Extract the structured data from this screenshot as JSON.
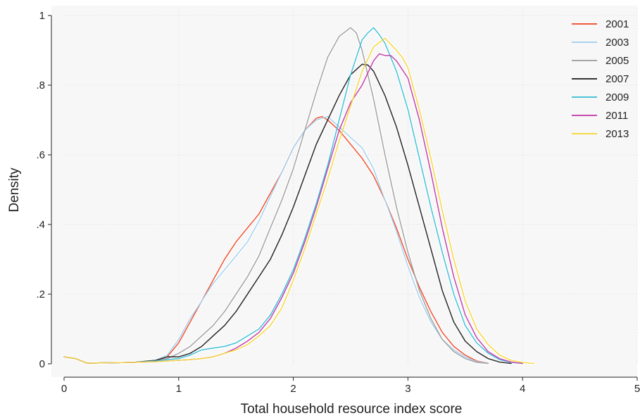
{
  "chart_data": {
    "type": "line",
    "title": "",
    "xlabel": "Total household resource index score",
    "ylabel": "Density",
    "xlim": [
      0,
      5
    ],
    "ylim": [
      0,
      1
    ],
    "x_ticks": [
      0,
      1,
      2,
      3,
      4,
      5
    ],
    "x_tick_labels": [
      "0",
      "1",
      "2",
      "3",
      "4",
      "5"
    ],
    "y_ticks": [
      0,
      0.2,
      0.4,
      0.6,
      0.8,
      1
    ],
    "y_tick_labels": [
      "0",
      ".2",
      ".4",
      ".6",
      ".8",
      "1"
    ],
    "grid": true,
    "legend_position": "top-right",
    "series": [
      {
        "name": "2001",
        "color": "#f05a3c",
        "points": [
          [
            0,
            0.02
          ],
          [
            0.1,
            0.015
          ],
          [
            0.2,
            0.002
          ],
          [
            0.4,
            0.003
          ],
          [
            0.6,
            0.004
          ],
          [
            0.8,
            0.008
          ],
          [
            0.9,
            0.02
          ],
          [
            1.0,
            0.06
          ],
          [
            1.1,
            0.12
          ],
          [
            1.2,
            0.18
          ],
          [
            1.3,
            0.24
          ],
          [
            1.4,
            0.3
          ],
          [
            1.5,
            0.35
          ],
          [
            1.6,
            0.39
          ],
          [
            1.7,
            0.43
          ],
          [
            1.8,
            0.49
          ],
          [
            1.9,
            0.55
          ],
          [
            2.0,
            0.62
          ],
          [
            2.1,
            0.67
          ],
          [
            2.2,
            0.705
          ],
          [
            2.25,
            0.71
          ],
          [
            2.3,
            0.7
          ],
          [
            2.4,
            0.67
          ],
          [
            2.5,
            0.63
          ],
          [
            2.6,
            0.59
          ],
          [
            2.7,
            0.54
          ],
          [
            2.8,
            0.47
          ],
          [
            2.9,
            0.39
          ],
          [
            3.0,
            0.3
          ],
          [
            3.1,
            0.22
          ],
          [
            3.2,
            0.15
          ],
          [
            3.3,
            0.09
          ],
          [
            3.4,
            0.05
          ],
          [
            3.5,
            0.025
          ],
          [
            3.6,
            0.008
          ],
          [
            3.7,
            0.002
          ]
        ]
      },
      {
        "name": "2003",
        "color": "#a9d2ee",
        "points": [
          [
            0,
            0.02
          ],
          [
            0.1,
            0.015
          ],
          [
            0.2,
            0.002
          ],
          [
            0.4,
            0.003
          ],
          [
            0.6,
            0.004
          ],
          [
            0.8,
            0.01
          ],
          [
            0.9,
            0.025
          ],
          [
            1.0,
            0.07
          ],
          [
            1.1,
            0.13
          ],
          [
            1.2,
            0.18
          ],
          [
            1.3,
            0.23
          ],
          [
            1.4,
            0.27
          ],
          [
            1.5,
            0.31
          ],
          [
            1.6,
            0.35
          ],
          [
            1.7,
            0.41
          ],
          [
            1.8,
            0.48
          ],
          [
            1.9,
            0.55
          ],
          [
            2.0,
            0.62
          ],
          [
            2.1,
            0.67
          ],
          [
            2.2,
            0.7
          ],
          [
            2.3,
            0.71
          ],
          [
            2.4,
            0.68
          ],
          [
            2.5,
            0.65
          ],
          [
            2.6,
            0.62
          ],
          [
            2.7,
            0.56
          ],
          [
            2.8,
            0.47
          ],
          [
            2.9,
            0.38
          ],
          [
            3.0,
            0.28
          ],
          [
            3.1,
            0.19
          ],
          [
            3.2,
            0.12
          ],
          [
            3.3,
            0.07
          ],
          [
            3.4,
            0.04
          ],
          [
            3.5,
            0.02
          ],
          [
            3.6,
            0.006
          ],
          [
            3.7,
            0.002
          ]
        ]
      },
      {
        "name": "2005",
        "color": "#a6a6a6",
        "points": [
          [
            0,
            0.02
          ],
          [
            0.1,
            0.015
          ],
          [
            0.2,
            0.002
          ],
          [
            0.4,
            0.003
          ],
          [
            0.6,
            0.004
          ],
          [
            0.8,
            0.008
          ],
          [
            0.9,
            0.015
          ],
          [
            1.0,
            0.03
          ],
          [
            1.1,
            0.05
          ],
          [
            1.2,
            0.08
          ],
          [
            1.3,
            0.11
          ],
          [
            1.4,
            0.15
          ],
          [
            1.5,
            0.2
          ],
          [
            1.6,
            0.25
          ],
          [
            1.7,
            0.31
          ],
          [
            1.8,
            0.39
          ],
          [
            1.9,
            0.47
          ],
          [
            2.0,
            0.56
          ],
          [
            2.1,
            0.67
          ],
          [
            2.2,
            0.78
          ],
          [
            2.3,
            0.88
          ],
          [
            2.4,
            0.94
          ],
          [
            2.5,
            0.965
          ],
          [
            2.55,
            0.95
          ],
          [
            2.6,
            0.9
          ],
          [
            2.7,
            0.76
          ],
          [
            2.8,
            0.6
          ],
          [
            2.9,
            0.45
          ],
          [
            3.0,
            0.32
          ],
          [
            3.1,
            0.21
          ],
          [
            3.2,
            0.13
          ],
          [
            3.3,
            0.07
          ],
          [
            3.4,
            0.035
          ],
          [
            3.5,
            0.015
          ],
          [
            3.6,
            0.004
          ],
          [
            3.7,
            0.001
          ]
        ]
      },
      {
        "name": "2007",
        "color": "#333333",
        "points": [
          [
            0,
            0.02
          ],
          [
            0.1,
            0.015
          ],
          [
            0.2,
            0.002
          ],
          [
            0.4,
            0.003
          ],
          [
            0.6,
            0.004
          ],
          [
            0.8,
            0.01
          ],
          [
            0.9,
            0.02
          ],
          [
            1.0,
            0.02
          ],
          [
            1.1,
            0.03
          ],
          [
            1.2,
            0.05
          ],
          [
            1.3,
            0.08
          ],
          [
            1.4,
            0.11
          ],
          [
            1.5,
            0.15
          ],
          [
            1.6,
            0.2
          ],
          [
            1.7,
            0.25
          ],
          [
            1.8,
            0.3
          ],
          [
            1.9,
            0.37
          ],
          [
            2.0,
            0.45
          ],
          [
            2.1,
            0.54
          ],
          [
            2.2,
            0.63
          ],
          [
            2.3,
            0.7
          ],
          [
            2.4,
            0.77
          ],
          [
            2.5,
            0.83
          ],
          [
            2.6,
            0.86
          ],
          [
            2.65,
            0.858
          ],
          [
            2.7,
            0.84
          ],
          [
            2.8,
            0.77
          ],
          [
            2.9,
            0.68
          ],
          [
            3.0,
            0.57
          ],
          [
            3.1,
            0.45
          ],
          [
            3.2,
            0.33
          ],
          [
            3.3,
            0.21
          ],
          [
            3.4,
            0.12
          ],
          [
            3.5,
            0.065
          ],
          [
            3.6,
            0.035
          ],
          [
            3.7,
            0.015
          ],
          [
            3.8,
            0.005
          ],
          [
            3.9,
            0.001
          ]
        ]
      },
      {
        "name": "2009",
        "color": "#4cc3d9",
        "points": [
          [
            0,
            0.02
          ],
          [
            0.1,
            0.015
          ],
          [
            0.2,
            0.002
          ],
          [
            0.4,
            0.003
          ],
          [
            0.6,
            0.004
          ],
          [
            0.8,
            0.008
          ],
          [
            0.9,
            0.012
          ],
          [
            1.0,
            0.015
          ],
          [
            1.1,
            0.025
          ],
          [
            1.2,
            0.04
          ],
          [
            1.3,
            0.045
          ],
          [
            1.4,
            0.05
          ],
          [
            1.5,
            0.06
          ],
          [
            1.6,
            0.08
          ],
          [
            1.7,
            0.1
          ],
          [
            1.8,
            0.14
          ],
          [
            1.9,
            0.2
          ],
          [
            2.0,
            0.27
          ],
          [
            2.1,
            0.36
          ],
          [
            2.2,
            0.46
          ],
          [
            2.3,
            0.57
          ],
          [
            2.4,
            0.7
          ],
          [
            2.5,
            0.83
          ],
          [
            2.6,
            0.93
          ],
          [
            2.65,
            0.95
          ],
          [
            2.7,
            0.965
          ],
          [
            2.75,
            0.945
          ],
          [
            2.8,
            0.92
          ],
          [
            2.9,
            0.84
          ],
          [
            3.0,
            0.73
          ],
          [
            3.1,
            0.59
          ],
          [
            3.2,
            0.45
          ],
          [
            3.3,
            0.32
          ],
          [
            3.4,
            0.2
          ],
          [
            3.5,
            0.11
          ],
          [
            3.6,
            0.06
          ],
          [
            3.7,
            0.03
          ],
          [
            3.8,
            0.012
          ],
          [
            3.9,
            0.004
          ],
          [
            4.0,
            0.001
          ]
        ]
      },
      {
        "name": "2011",
        "color": "#c64bb0",
        "points": [
          [
            0,
            0.02
          ],
          [
            0.1,
            0.015
          ],
          [
            0.2,
            0.002
          ],
          [
            0.4,
            0.003
          ],
          [
            0.6,
            0.004
          ],
          [
            0.8,
            0.006
          ],
          [
            0.9,
            0.008
          ],
          [
            1.0,
            0.01
          ],
          [
            1.1,
            0.012
          ],
          [
            1.2,
            0.015
          ],
          [
            1.3,
            0.02
          ],
          [
            1.4,
            0.03
          ],
          [
            1.5,
            0.045
          ],
          [
            1.6,
            0.065
          ],
          [
            1.7,
            0.09
          ],
          [
            1.8,
            0.13
          ],
          [
            1.9,
            0.19
          ],
          [
            2.0,
            0.26
          ],
          [
            2.1,
            0.35
          ],
          [
            2.2,
            0.45
          ],
          [
            2.3,
            0.56
          ],
          [
            2.4,
            0.67
          ],
          [
            2.5,
            0.75
          ],
          [
            2.6,
            0.8
          ],
          [
            2.7,
            0.87
          ],
          [
            2.75,
            0.89
          ],
          [
            2.8,
            0.885
          ],
          [
            2.85,
            0.885
          ],
          [
            2.9,
            0.87
          ],
          [
            3.0,
            0.82
          ],
          [
            3.1,
            0.7
          ],
          [
            3.2,
            0.55
          ],
          [
            3.3,
            0.39
          ],
          [
            3.4,
            0.25
          ],
          [
            3.5,
            0.14
          ],
          [
            3.6,
            0.075
          ],
          [
            3.7,
            0.035
          ],
          [
            3.8,
            0.015
          ],
          [
            3.9,
            0.005
          ],
          [
            4.0,
            0.001
          ]
        ]
      },
      {
        "name": "2013",
        "color": "#f5d848",
        "points": [
          [
            0,
            0.02
          ],
          [
            0.1,
            0.015
          ],
          [
            0.2,
            0.002
          ],
          [
            0.4,
            0.003
          ],
          [
            0.6,
            0.004
          ],
          [
            0.8,
            0.006
          ],
          [
            0.9,
            0.008
          ],
          [
            1.0,
            0.01
          ],
          [
            1.1,
            0.012
          ],
          [
            1.2,
            0.015
          ],
          [
            1.3,
            0.02
          ],
          [
            1.4,
            0.03
          ],
          [
            1.5,
            0.04
          ],
          [
            1.6,
            0.055
          ],
          [
            1.7,
            0.08
          ],
          [
            1.8,
            0.11
          ],
          [
            1.9,
            0.16
          ],
          [
            2.0,
            0.24
          ],
          [
            2.1,
            0.33
          ],
          [
            2.2,
            0.43
          ],
          [
            2.3,
            0.53
          ],
          [
            2.4,
            0.64
          ],
          [
            2.5,
            0.74
          ],
          [
            2.6,
            0.84
          ],
          [
            2.7,
            0.91
          ],
          [
            2.8,
            0.935
          ],
          [
            2.9,
            0.9
          ],
          [
            2.95,
            0.88
          ],
          [
            3.0,
            0.85
          ],
          [
            3.1,
            0.73
          ],
          [
            3.2,
            0.59
          ],
          [
            3.3,
            0.44
          ],
          [
            3.4,
            0.3
          ],
          [
            3.5,
            0.18
          ],
          [
            3.6,
            0.1
          ],
          [
            3.7,
            0.055
          ],
          [
            3.8,
            0.025
          ],
          [
            3.9,
            0.01
          ],
          [
            4.0,
            0.004
          ],
          [
            4.1,
            0.001
          ]
        ]
      }
    ]
  }
}
